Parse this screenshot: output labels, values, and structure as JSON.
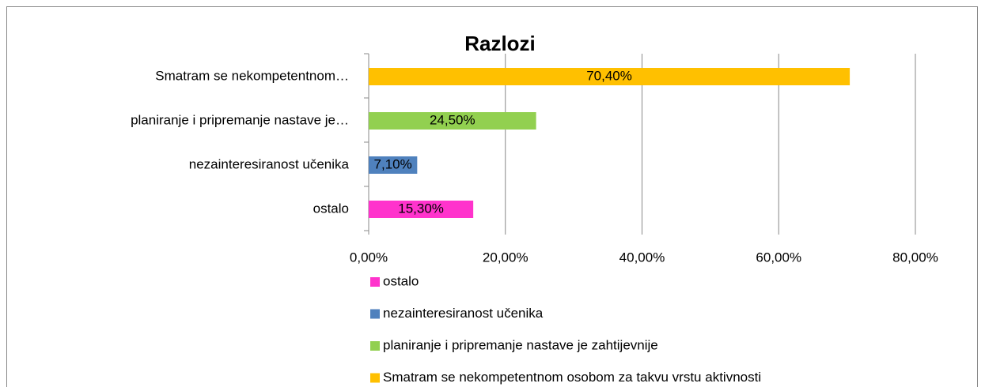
{
  "chart_data": {
    "type": "bar",
    "orientation": "horizontal",
    "title": "Razlozi",
    "categories": [
      "Smatram se nekompetentnom…",
      "planiranje i pripremanje nastave je…",
      "nezainteresiranost učenika",
      "ostalo"
    ],
    "values": [
      70.4,
      24.5,
      7.1,
      15.3
    ],
    "value_labels": [
      "70,40%",
      "24,50%",
      "7,10%",
      "15,30%"
    ],
    "colors": [
      "#ffc000",
      "#92d050",
      "#4f81bd",
      "#ff33cc"
    ],
    "legend": [
      "ostalo",
      "nezainteresiranost učenika",
      "planiranje i pripremanje nastave je zahtijevnije",
      "Smatram se nekompetentnom osobom za takvu vrstu aktivnosti"
    ],
    "xlim": [
      0,
      80
    ],
    "xticks": [
      {
        "value": 0,
        "label": "0,00%"
      },
      {
        "value": 20,
        "label": "20,00%"
      },
      {
        "value": 40,
        "label": "40,00%"
      },
      {
        "value": 60,
        "label": "60,00%"
      },
      {
        "value": 80,
        "label": "80,00%"
      }
    ],
    "grid": true
  }
}
